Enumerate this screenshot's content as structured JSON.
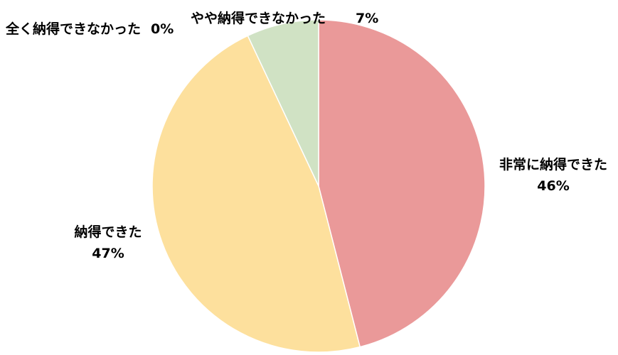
{
  "chart_data": {
    "type": "pie",
    "title": "",
    "start_angle_deg": 0,
    "direction": "clockwise",
    "slices": [
      {
        "label": "非常に納得できた",
        "value": 46,
        "percent_label": "46%",
        "color": "#EA9999"
      },
      {
        "label": "納得できた",
        "value": 47,
        "percent_label": "47%",
        "color": "#FDE09D"
      },
      {
        "label": "やや納得できなかった",
        "value": 7,
        "percent_label": "7%",
        "color": "#D0E2C4"
      },
      {
        "label": "全く納得できなかった",
        "value": 0,
        "percent_label": "0%",
        "color": "#9FC5E8"
      }
    ]
  }
}
